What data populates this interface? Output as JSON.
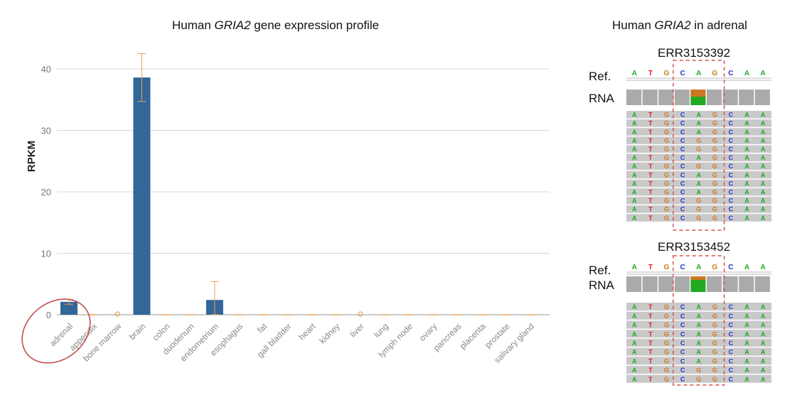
{
  "left_panel": {
    "title_prefix": "Human ",
    "title_gene": "GRIA2",
    "title_suffix": " gene expression profile"
  },
  "right_panel": {
    "title_prefix": "Human ",
    "title_gene": "GRIA2",
    "title_suffix": " in adrenal",
    "ref_label": "Ref.",
    "rna_label": "RNA",
    "reference_sequence": [
      "A",
      "T",
      "G",
      "C",
      "A",
      "G",
      "C",
      "A",
      "A"
    ],
    "runs": [
      {
        "id": "ERR3153392",
        "reads": [
          "ATGCAGCAA",
          "ATGCAGCAA",
          "ATGCAGCAA",
          "ATGCGGCAA",
          "ATGCGGCAA",
          "ATGCAGCAA",
          "ATGCGGCAA",
          "ATGCAGCAA",
          "ATGCAGCAA",
          "ATGCAGCAA",
          "ATGCGGCAA",
          "ATGCGGCAA",
          "ATGCGGCAA"
        ]
      },
      {
        "id": "ERR3153452",
        "reads": [
          "ATGCAGCAA",
          "ATGCAGCAA",
          "ATGCAGCAA",
          "ATGCAGCAA",
          "ATGCAGCAA",
          "ATGCAGCAA",
          "ATGCAGCAA",
          "ATGCGGCAA",
          "ATGCGGCAA"
        ]
      }
    ]
  },
  "colors": {
    "bar": "#336699",
    "error_bar": "#e8a050",
    "highlight_circle": "#c0504d",
    "dashed_box": "#d9534f",
    "A": "#22aa22",
    "T": "#dd2222",
    "G": "#cc7722",
    "C": "#2233cc"
  },
  "chart_data": {
    "type": "bar",
    "title": "Human GRIA2 gene expression profile",
    "xlabel": "",
    "ylabel": "RPKM",
    "ylim": [
      0,
      45
    ],
    "yticks": [
      0,
      10,
      20,
      30,
      40
    ],
    "grid": true,
    "categories": [
      "adrenal",
      "appendix",
      "bone marrow",
      "brain",
      "colon",
      "duodenum",
      "endometrium",
      "esophagus",
      "fat",
      "gall bladder",
      "heart",
      "kidney",
      "liver",
      "lung",
      "lymph node",
      "ovary",
      "pancreas",
      "placenta",
      "prostate",
      "salivary gland"
    ],
    "values": [
      2.1,
      0.05,
      0.1,
      38.6,
      0.05,
      0.05,
      2.4,
      0.05,
      0.05,
      0.05,
      0.05,
      0.05,
      0.15,
      0.05,
      0.05,
      0.05,
      0.05,
      0.05,
      0.05,
      0.05
    ],
    "errors": [
      0.4,
      0.05,
      0.1,
      3.9,
      0.05,
      0.05,
      3.0,
      0.05,
      0.05,
      0.05,
      0.05,
      0.05,
      0.15,
      0.05,
      0.05,
      0.05,
      0.05,
      0.05,
      0.05,
      0.05
    ],
    "annotations": [
      "adrenal highlighted with red circle"
    ]
  }
}
